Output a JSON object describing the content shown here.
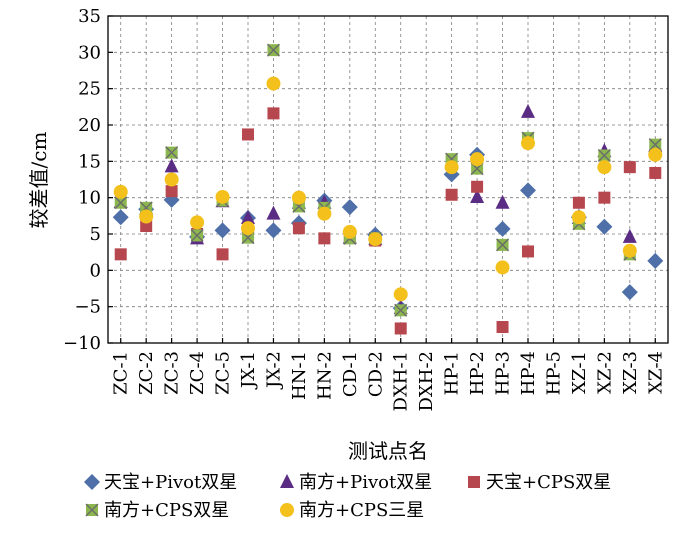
{
  "chart_data": {
    "type": "scatter",
    "title": "",
    "xlabel": "测试点名",
    "ylabel": "较差值/cm",
    "ylim": [
      -10,
      35
    ],
    "yticks": [
      -10,
      -5,
      0,
      5,
      10,
      15,
      20,
      25,
      30,
      35
    ],
    "grid": true,
    "legend_position": "bottom",
    "categories": [
      "ZC-1",
      "ZC-2",
      "ZC-3",
      "ZC-4",
      "ZC-5",
      "JX-1",
      "JX-2",
      "HN-1",
      "HN-2",
      "CD-1",
      "CD-2",
      "DXH-1",
      "DXH-2",
      "HP-1",
      "HP-2",
      "HP-3",
      "HP-4",
      "HP-5",
      "XZ-1",
      "XZ-2",
      "XZ-3",
      "XZ-4"
    ],
    "series": [
      {
        "name": "天宝+Pivot双星",
        "marker": "diamond",
        "color": "#4e6fa8",
        "values": [
          7.3,
          8.4,
          9.7,
          4.6,
          5.5,
          7.2,
          5.5,
          6.5,
          9.6,
          8.7,
          4.9,
          -5.2,
          null,
          13.2,
          15.9,
          5.7,
          11.0,
          null,
          7.3,
          6.0,
          -3.0,
          1.3
        ]
      },
      {
        "name": "南方+Pivot双星",
        "marker": "triangle",
        "color": "#5b2c83",
        "values": [
          9.4,
          8.5,
          14.3,
          4.4,
          9.5,
          7.2,
          7.8,
          9.3,
          9.3,
          4.5,
          4.3,
          -5.2,
          null,
          14.8,
          10.1,
          9.3,
          21.8,
          null,
          7.2,
          16.4,
          4.6,
          17.1
        ]
      },
      {
        "name": "天宝+CPS双星",
        "marker": "square",
        "color": "#b7474e",
        "values": [
          2.2,
          6.1,
          10.9,
          5.0,
          2.2,
          18.7,
          21.6,
          5.8,
          4.4,
          4.7,
          4.1,
          -8.0,
          null,
          10.4,
          11.5,
          -7.8,
          2.6,
          null,
          9.3,
          10.0,
          14.2,
          13.4
        ]
      },
      {
        "name": "南方+CPS双星",
        "marker": "square-x",
        "color": "#8bb74e",
        "values": [
          9.3,
          8.6,
          16.2,
          4.8,
          9.6,
          4.5,
          30.3,
          8.8,
          8.6,
          4.4,
          4.4,
          -5.5,
          null,
          15.3,
          14.0,
          3.5,
          18.2,
          null,
          6.4,
          15.8,
          2.2,
          17.3
        ]
      },
      {
        "name": "南方+CPS三星",
        "marker": "circle",
        "color": "#f4c01c",
        "values": [
          10.8,
          7.4,
          12.5,
          6.6,
          10.1,
          5.8,
          25.7,
          10.0,
          7.8,
          5.3,
          4.3,
          -3.3,
          null,
          14.2,
          15.3,
          0.4,
          17.5,
          null,
          7.3,
          14.2,
          2.7,
          15.9
        ]
      }
    ]
  }
}
